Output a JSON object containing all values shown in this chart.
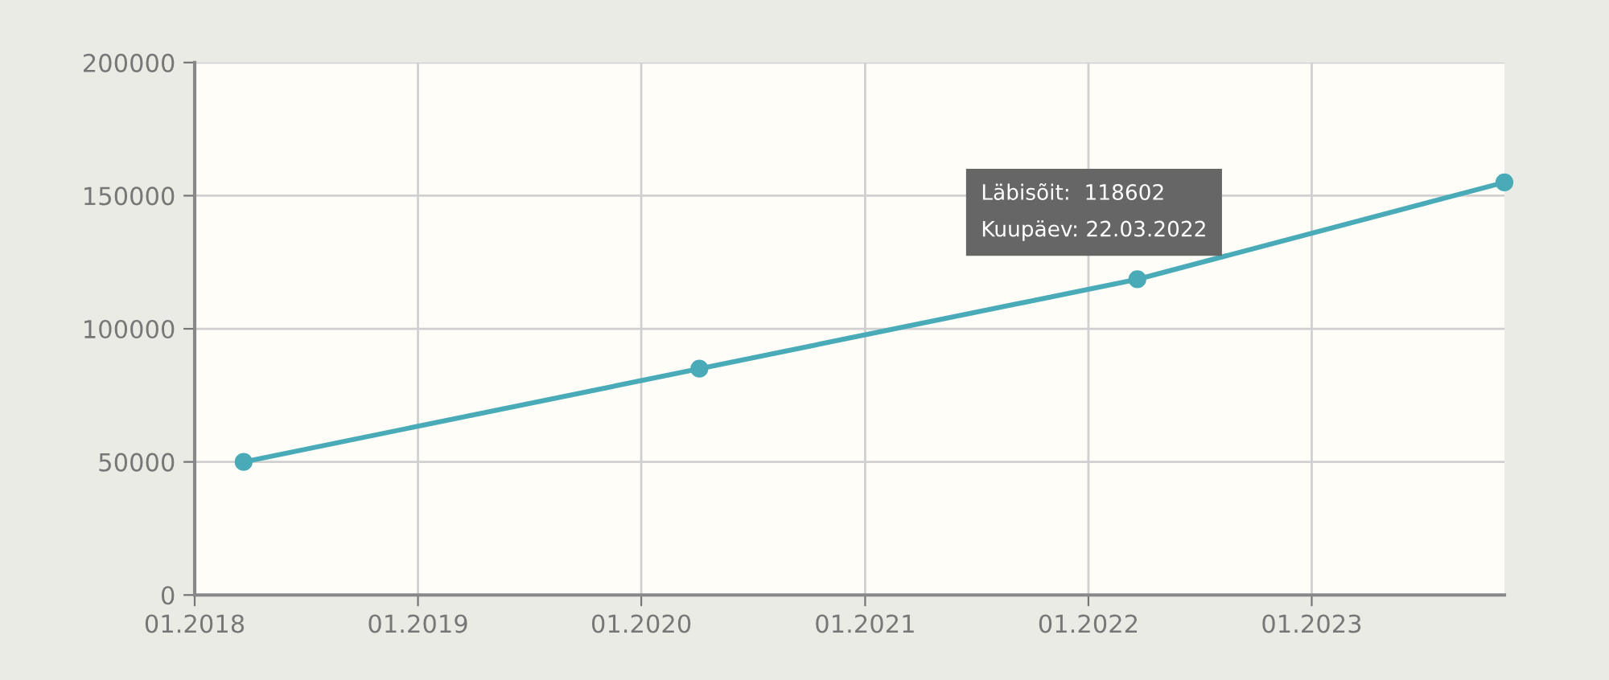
{
  "chart_data": {
    "type": "line",
    "x": [
      "2018-03-22",
      "2020-04-05",
      "2022-03-22",
      "2023-11-12"
    ],
    "series": [
      {
        "color": "#4aabb8",
        "values": [
          50000,
          85000,
          118602,
          155000
        ]
      }
    ],
    "xlim": [
      "2018-01-01",
      "2023-11-12"
    ],
    "xticks": [
      {
        "value": "2018-01-01",
        "label": "01.2018"
      },
      {
        "value": "2019-01-01",
        "label": "01.2019"
      },
      {
        "value": "2020-01-01",
        "label": "01.2020"
      },
      {
        "value": "2021-01-01",
        "label": "01.2021"
      },
      {
        "value": "2022-01-01",
        "label": "01.2022"
      },
      {
        "value": "2023-01-01",
        "label": "01.2023"
      }
    ],
    "ylim": [
      0,
      200000
    ],
    "yticks": [
      0,
      50000,
      100000,
      150000,
      200000
    ],
    "grid": true,
    "marker": "circle",
    "line_style": "solid",
    "annotations": [
      {
        "text": "Läbisõit:  118602\nKuupäev: 22.03.2022",
        "x": "2022-03-22",
        "y": 118602
      }
    ]
  }
}
